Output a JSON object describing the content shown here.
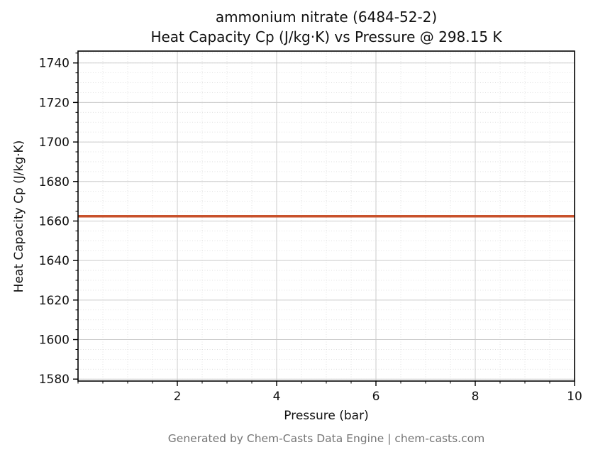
{
  "title_line1": "ammonium nitrate (6484-52-2)",
  "title_line2": "Heat Capacity Cp (J/kg·K) vs Pressure @ 298.15 K",
  "footer": "Generated by Chem-Casts Data Engine | chem-casts.com",
  "chart_data": {
    "type": "line",
    "title": "ammonium nitrate (6484-52-2)\nHeat Capacity Cp (J/kg·K) vs Pressure @ 298.15 K",
    "xlabel": "Pressure (bar)",
    "ylabel": "Heat Capacity Cp (J/kg·K)",
    "xlim": [
      0,
      10
    ],
    "ylim": [
      1579,
      1746
    ],
    "x_ticks": [
      2,
      4,
      6,
      8,
      10
    ],
    "y_ticks": [
      1580,
      1600,
      1620,
      1640,
      1660,
      1680,
      1700,
      1720,
      1740
    ],
    "x_minor_step": 0.5,
    "y_minor_step": 5,
    "grid": true,
    "legend": "none",
    "series": [
      {
        "name": "Heat Capacity Cp",
        "x": [
          0,
          1,
          2,
          3,
          4,
          5,
          6,
          7,
          8,
          9,
          10
        ],
        "values": [
          1662.4,
          1662.4,
          1662.4,
          1662.4,
          1662.4,
          1662.4,
          1662.4,
          1662.4,
          1662.4,
          1662.4,
          1662.4
        ],
        "color": "#c8512b",
        "line_width": 3.5
      }
    ],
    "colors": {
      "major_grid": "#cbcbcb",
      "minor_grid": "#dcdcdc",
      "frame": "#000000",
      "footer_text": "#757575"
    }
  }
}
